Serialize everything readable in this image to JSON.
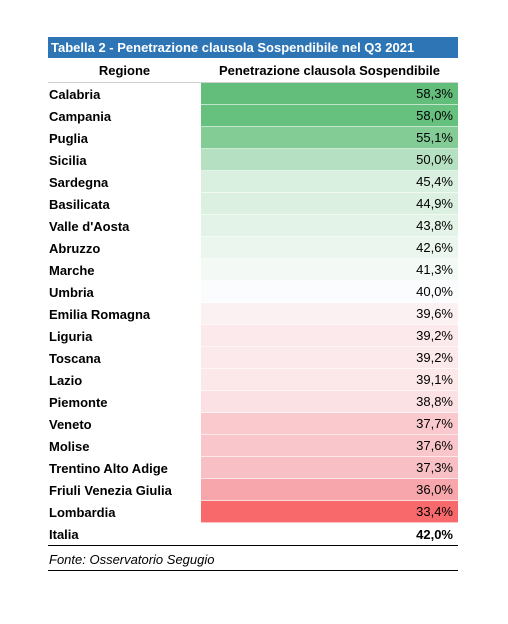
{
  "table": {
    "title": "Tabella 2 - Penetrazione clausola Sospendibile nel Q3 2021",
    "header_region": "Regione",
    "header_value": "Penetrazione clausola Sospendibile",
    "rows": [
      {
        "region": "Calabria",
        "value": "58,3%",
        "color": "#63be7b"
      },
      {
        "region": "Campania",
        "value": "58,0%",
        "color": "#66c07e"
      },
      {
        "region": "Puglia",
        "value": "55,1%",
        "color": "#83cc96"
      },
      {
        "region": "Sicilia",
        "value": "50,0%",
        "color": "#b5e0c1"
      },
      {
        "region": "Sardegna",
        "value": "45,4%",
        "color": "#d9efdf"
      },
      {
        "region": "Basilicata",
        "value": "44,9%",
        "color": "#dbf0e1"
      },
      {
        "region": "Valle d'Aosta",
        "value": "43,8%",
        "color": "#e3f3e8"
      },
      {
        "region": "Abruzzo",
        "value": "42,6%",
        "color": "#ebf6ef"
      },
      {
        "region": "Marche",
        "value": "41,3%",
        "color": "#f3f9f5"
      },
      {
        "region": "Umbria",
        "value": "40,0%",
        "color": "#fbfcfd"
      },
      {
        "region": "Emilia Romagna",
        "value": "39,6%",
        "color": "#fbf1f3"
      },
      {
        "region": "Liguria",
        "value": "39,2%",
        "color": "#fce9eb"
      },
      {
        "region": "Toscana",
        "value": "39,2%",
        "color": "#fce9eb"
      },
      {
        "region": "Lazio",
        "value": "39,1%",
        "color": "#fce7e9"
      },
      {
        "region": "Piemonte",
        "value": "38,8%",
        "color": "#fbe1e4"
      },
      {
        "region": "Veneto",
        "value": "37,7%",
        "color": "#f9c9cd"
      },
      {
        "region": "Molise",
        "value": "37,6%",
        "color": "#f9c7cb"
      },
      {
        "region": "Trentino Alto Adige",
        "value": "37,3%",
        "color": "#f8c0c4"
      },
      {
        "region": "Friuli Venezia Giulia",
        "value": "36,0%",
        "color": "#f7a6ab"
      },
      {
        "region": "Lombardia",
        "value": "33,4%",
        "color": "#f8696b"
      }
    ],
    "total": {
      "region": "Italia",
      "value": "42,0%"
    },
    "source": "Fonte: Osservatorio Segugio"
  }
}
